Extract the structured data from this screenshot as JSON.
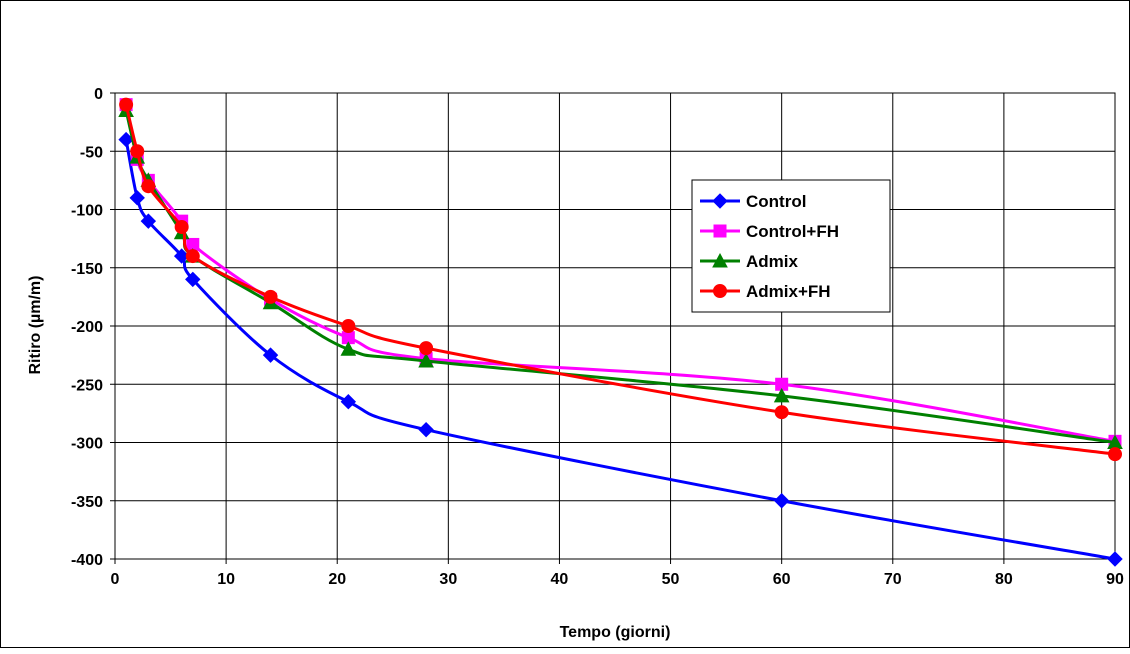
{
  "chart_data": {
    "type": "line",
    "title": "",
    "xlabel": "Tempo (giorni)",
    "ylabel": "Ritiro (µm/m)",
    "xlim": [
      0,
      90
    ],
    "ylim": [
      -400,
      0
    ],
    "xticks": [
      0,
      10,
      20,
      30,
      40,
      50,
      60,
      70,
      80,
      90
    ],
    "yticks": [
      0,
      -50,
      -100,
      -150,
      -200,
      -250,
      -300,
      -350,
      -400
    ],
    "grid": true,
    "legend_position": "right",
    "series": [
      {
        "name": "Control",
        "color": "#0000ff",
        "marker": "diamond",
        "x": [
          1,
          2,
          3,
          6,
          7,
          14,
          21,
          28,
          60,
          90
        ],
        "y": [
          -40,
          -90,
          -110,
          -140,
          -160,
          -225,
          -265,
          -289,
          -350,
          -400
        ]
      },
      {
        "name": "Control+FH",
        "color": "#ff00ff",
        "marker": "square",
        "x": [
          1,
          2,
          3,
          6,
          7,
          14,
          21,
          28,
          60,
          90
        ],
        "y": [
          -10,
          -57,
          -75,
          -110,
          -130,
          -177,
          -210,
          -228,
          -250,
          -299
        ]
      },
      {
        "name": "Admix",
        "color": "#008000",
        "marker": "triangle",
        "x": [
          1,
          2,
          3,
          6,
          7,
          14,
          21,
          28,
          60,
          90
        ],
        "y": [
          -15,
          -55,
          -75,
          -120,
          -140,
          -180,
          -220,
          -230,
          -260,
          -300
        ]
      },
      {
        "name": "Admix+FH",
        "color": "#ff0000",
        "marker": "circle",
        "x": [
          1,
          2,
          3,
          6,
          7,
          14,
          21,
          28,
          60,
          90
        ],
        "y": [
          -10,
          -50,
          -80,
          -115,
          -140,
          -175,
          -200,
          -219,
          -274,
          -310
        ]
      }
    ]
  }
}
